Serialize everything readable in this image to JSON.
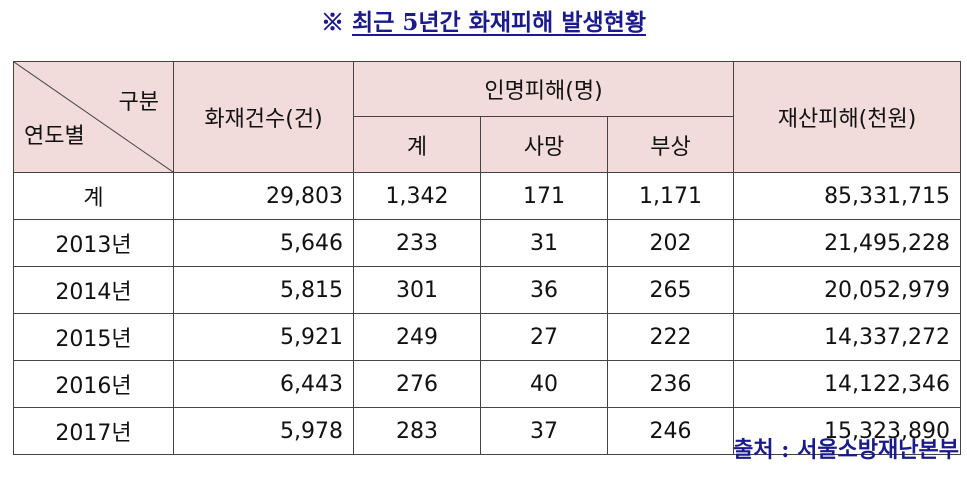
{
  "title": {
    "mark": "※",
    "text": "최근 5년간 화재피해 발생현황"
  },
  "table": {
    "header": {
      "corner_top": "구분",
      "corner_bottom": "연도별",
      "fires": "화재건수(건)",
      "casualties": "인명피해(명)",
      "property": "재산피해(천원)",
      "casualty_sub": [
        "계",
        "사망",
        "부상"
      ]
    },
    "rows": [
      {
        "year": "계",
        "fires": "29,803",
        "total": "1,342",
        "deaths": "171",
        "injuries": "1,171",
        "property": "85,331,715"
      },
      {
        "year": "2013년",
        "fires": "5,646",
        "total": "233",
        "deaths": "31",
        "injuries": "202",
        "property": "21,495,228"
      },
      {
        "year": "2014년",
        "fires": "5,815",
        "total": "301",
        "deaths": "36",
        "injuries": "265",
        "property": "20,052,979"
      },
      {
        "year": "2015년",
        "fires": "5,921",
        "total": "249",
        "deaths": "27",
        "injuries": "222",
        "property": "14,337,272"
      },
      {
        "year": "2016년",
        "fires": "6,443",
        "total": "276",
        "deaths": "40",
        "injuries": "236",
        "property": "14,122,346"
      },
      {
        "year": "2017년",
        "fires": "5,978",
        "total": "283",
        "deaths": "37",
        "injuries": "246",
        "property": "15,323,890"
      }
    ]
  },
  "source": "출처 : 서울소방재난본부",
  "colors": {
    "header_bg": "#f2dbdb",
    "title_color": "#1a1a8c"
  }
}
